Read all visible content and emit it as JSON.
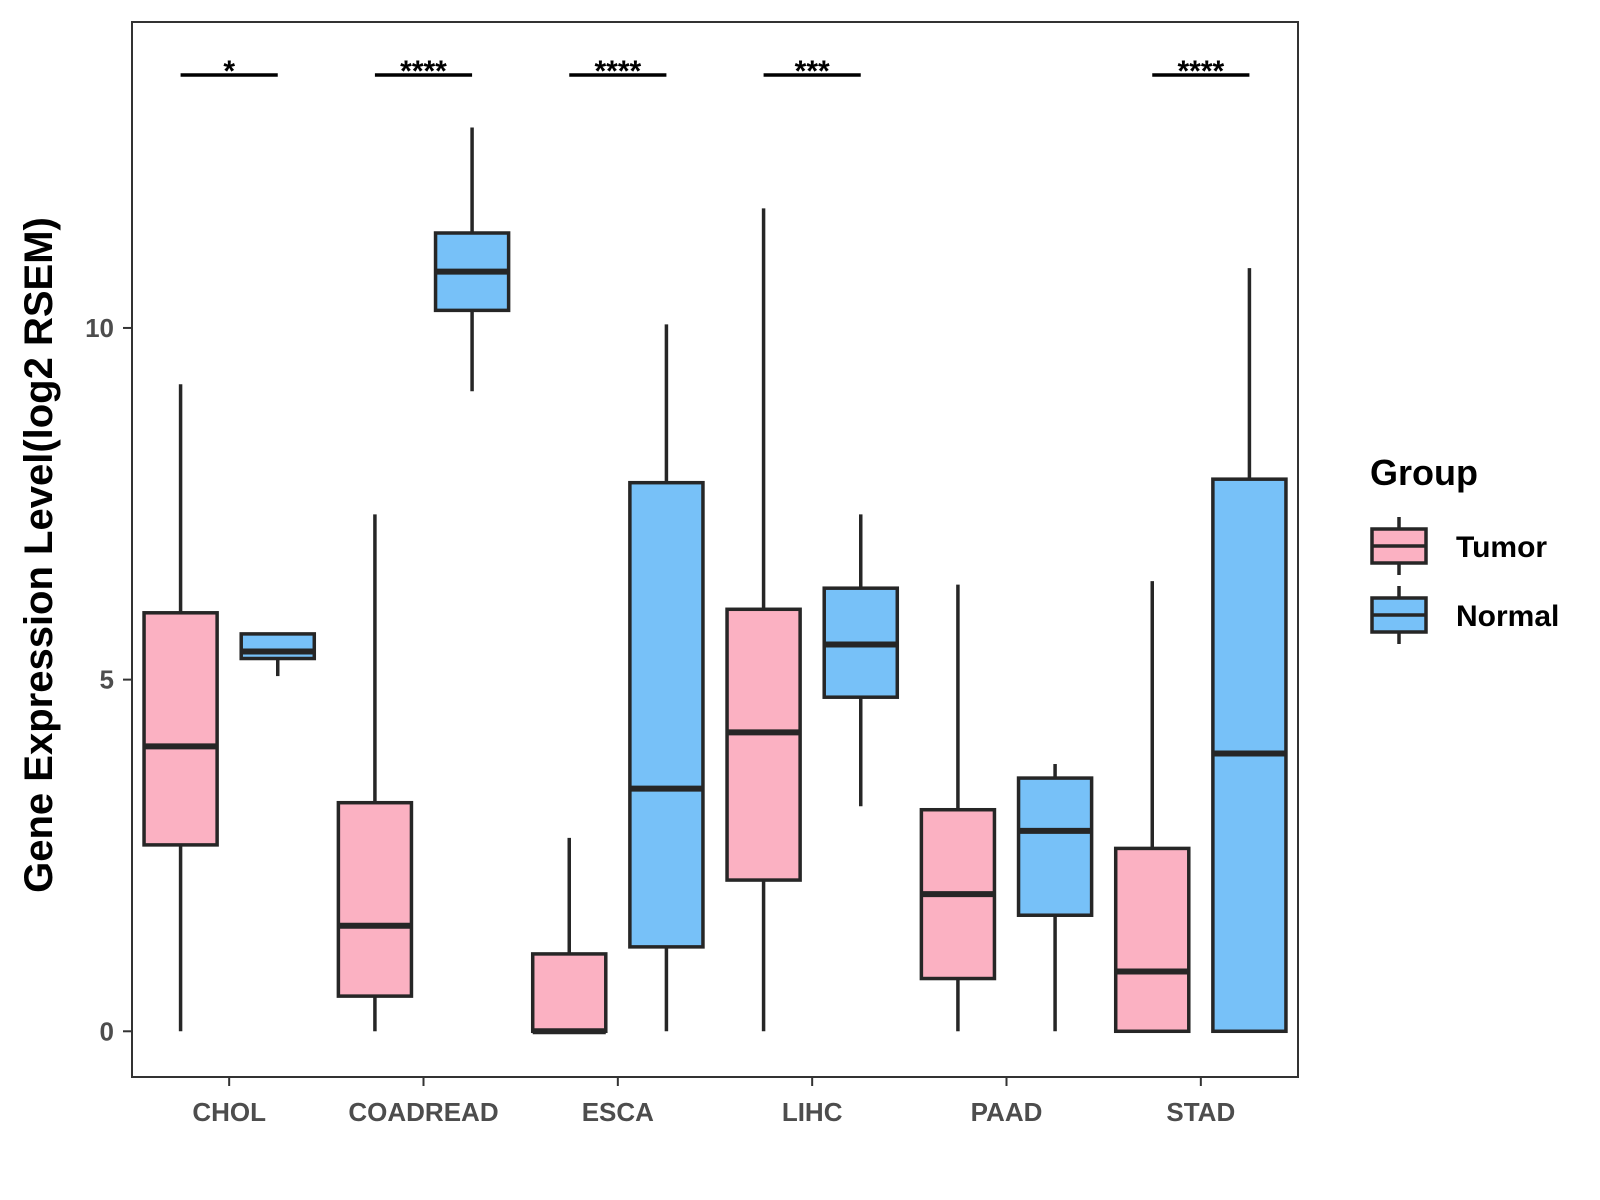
{
  "chart_data": {
    "type": "boxplot",
    "title": "",
    "xlabel": "",
    "ylabel": "Gene Expression Level(log2 RSEM)",
    "ylim": [
      -0.65,
      14.35
    ],
    "yticks": [
      0,
      5,
      10
    ],
    "ytick_labels": [
      "0",
      "5",
      "10"
    ],
    "categories": [
      "CHOL",
      "COADREAD",
      "ESCA",
      "LIHC",
      "PAAD",
      "STAD"
    ],
    "legend": {
      "title": "Group",
      "position": "right",
      "entries": [
        {
          "name": "Tumor",
          "color": "#FBB1C2"
        },
        {
          "name": "Normal",
          "color": "#77C1F8"
        }
      ]
    },
    "series": [
      {
        "name": "Tumor",
        "color": "#FBB1C2",
        "boxes": [
          {
            "category": "CHOL",
            "min": 0.0,
            "q1": 2.65,
            "median": 4.05,
            "q3": 5.95,
            "max": 9.2
          },
          {
            "category": "COADREAD",
            "min": 0.0,
            "q1": 0.5,
            "median": 1.5,
            "q3": 3.25,
            "max": 7.35
          },
          {
            "category": "ESCA",
            "min": 0.0,
            "q1": 0.0,
            "median": 0.0,
            "q3": 1.1,
            "max": 2.75
          },
          {
            "category": "LIHC",
            "min": 0.0,
            "q1": 2.15,
            "median": 4.25,
            "q3": 6.0,
            "max": 11.7
          },
          {
            "category": "PAAD",
            "min": 0.0,
            "q1": 0.75,
            "median": 1.95,
            "q3": 3.15,
            "max": 6.35
          },
          {
            "category": "STAD",
            "min": 0.0,
            "q1": 0.0,
            "median": 0.85,
            "q3": 2.6,
            "max": 6.4
          }
        ]
      },
      {
        "name": "Normal",
        "color": "#77C1F8",
        "boxes": [
          {
            "category": "CHOL",
            "min": 5.05,
            "q1": 5.3,
            "median": 5.4,
            "q3": 5.65,
            "max": 5.65
          },
          {
            "category": "COADREAD",
            "min": 9.1,
            "q1": 10.25,
            "median": 10.8,
            "q3": 11.35,
            "max": 12.85
          },
          {
            "category": "ESCA",
            "min": 0.0,
            "q1": 1.2,
            "median": 3.45,
            "q3": 7.8,
            "max": 10.05
          },
          {
            "category": "LIHC",
            "min": 3.2,
            "q1": 4.75,
            "median": 5.5,
            "q3": 6.3,
            "max": 7.35
          },
          {
            "category": "PAAD",
            "min": 0.0,
            "q1": 1.65,
            "median": 2.85,
            "q3": 3.6,
            "max": 3.8
          },
          {
            "category": "STAD",
            "min": 0.0,
            "q1": 0.0,
            "median": 3.95,
            "q3": 7.85,
            "max": 10.85
          }
        ]
      }
    ],
    "significance": [
      {
        "category": "CHOL",
        "label": "*"
      },
      {
        "category": "COADREAD",
        "label": "****"
      },
      {
        "category": "ESCA",
        "label": "****"
      },
      {
        "category": "LIHC",
        "label": "***"
      },
      {
        "category": "PAAD",
        "label": ""
      },
      {
        "category": "STAD",
        "label": "****"
      }
    ],
    "grid": false
  }
}
